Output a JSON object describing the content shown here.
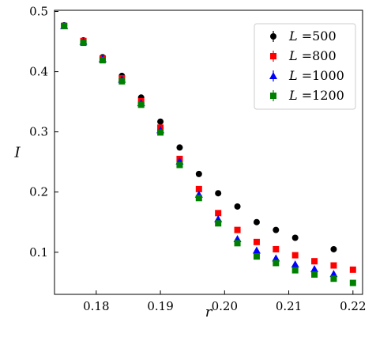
{
  "chart_data": {
    "type": "scatter",
    "xlabel": "r",
    "ylabel": "I",
    "xlim": [
      0.1735,
      0.2215
    ],
    "ylim": [
      0.03,
      0.502
    ],
    "x_ticks": [
      0.18,
      0.19,
      0.2,
      0.21,
      0.22
    ],
    "x_tick_labels": [
      "0.18",
      "0.19",
      "0.20",
      "0.21",
      "0.22"
    ],
    "y_ticks": [
      0.1,
      0.2,
      0.3,
      0.4,
      0.5
    ],
    "y_tick_labels": [
      "0.1",
      "0.2",
      "0.3",
      "0.4",
      "0.5"
    ],
    "grid": false,
    "legend_position": "top-right",
    "series": [
      {
        "name": "L =500",
        "legend_var": "L",
        "legend_value": " =500",
        "color": "#000000",
        "marker": "circle",
        "points": [
          {
            "x": 0.175,
            "y": 0.477
          },
          {
            "x": 0.178,
            "y": 0.452
          },
          {
            "x": 0.181,
            "y": 0.424
          },
          {
            "x": 0.184,
            "y": 0.393
          },
          {
            "x": 0.187,
            "y": 0.357
          },
          {
            "x": 0.19,
            "y": 0.317
          },
          {
            "x": 0.193,
            "y": 0.274
          },
          {
            "x": 0.196,
            "y": 0.23
          },
          {
            "x": 0.199,
            "y": 0.198
          },
          {
            "x": 0.202,
            "y": 0.176
          },
          {
            "x": 0.205,
            "y": 0.15
          },
          {
            "x": 0.208,
            "y": 0.137
          },
          {
            "x": 0.211,
            "y": 0.124
          },
          {
            "x": 0.217,
            "y": 0.105
          }
        ]
      },
      {
        "name": "L =800",
        "legend_var": "L",
        "legend_value": " =800",
        "color": "#ff0000",
        "marker": "square",
        "points": [
          {
            "x": 0.175,
            "y": 0.476
          },
          {
            "x": 0.178,
            "y": 0.451
          },
          {
            "x": 0.181,
            "y": 0.422
          },
          {
            "x": 0.184,
            "y": 0.389
          },
          {
            "x": 0.187,
            "y": 0.351
          },
          {
            "x": 0.19,
            "y": 0.307
          },
          {
            "x": 0.193,
            "y": 0.255
          },
          {
            "x": 0.196,
            "y": 0.205
          },
          {
            "x": 0.199,
            "y": 0.165
          },
          {
            "x": 0.202,
            "y": 0.137
          },
          {
            "x": 0.205,
            "y": 0.117
          },
          {
            "x": 0.208,
            "y": 0.105
          },
          {
            "x": 0.211,
            "y": 0.095
          },
          {
            "x": 0.214,
            "y": 0.085
          },
          {
            "x": 0.217,
            "y": 0.078
          },
          {
            "x": 0.22,
            "y": 0.071
          }
        ]
      },
      {
        "name": "L =1000",
        "legend_var": "L",
        "legend_value": " =1000",
        "color": "#0000ff",
        "marker": "triangle",
        "points": [
          {
            "x": 0.175,
            "y": 0.476
          },
          {
            "x": 0.178,
            "y": 0.45
          },
          {
            "x": 0.181,
            "y": 0.421
          },
          {
            "x": 0.184,
            "y": 0.387
          },
          {
            "x": 0.187,
            "y": 0.348
          },
          {
            "x": 0.19,
            "y": 0.303
          },
          {
            "x": 0.193,
            "y": 0.251
          },
          {
            "x": 0.196,
            "y": 0.196
          },
          {
            "x": 0.199,
            "y": 0.155
          },
          {
            "x": 0.202,
            "y": 0.122
          },
          {
            "x": 0.205,
            "y": 0.103
          },
          {
            "x": 0.208,
            "y": 0.09
          },
          {
            "x": 0.211,
            "y": 0.08
          },
          {
            "x": 0.214,
            "y": 0.072
          },
          {
            "x": 0.217,
            "y": 0.064
          }
        ]
      },
      {
        "name": "L =1200",
        "legend_var": "L",
        "legend_value": " =1200",
        "color": "#008000",
        "marker": "square",
        "points": [
          {
            "x": 0.175,
            "y": 0.476
          },
          {
            "x": 0.178,
            "y": 0.448
          },
          {
            "x": 0.181,
            "y": 0.419
          },
          {
            "x": 0.184,
            "y": 0.384
          },
          {
            "x": 0.187,
            "y": 0.345
          },
          {
            "x": 0.19,
            "y": 0.299
          },
          {
            "x": 0.193,
            "y": 0.245
          },
          {
            "x": 0.196,
            "y": 0.19
          },
          {
            "x": 0.199,
            "y": 0.148
          },
          {
            "x": 0.202,
            "y": 0.115
          },
          {
            "x": 0.205,
            "y": 0.093
          },
          {
            "x": 0.208,
            "y": 0.082
          },
          {
            "x": 0.211,
            "y": 0.07
          },
          {
            "x": 0.214,
            "y": 0.063
          },
          {
            "x": 0.217,
            "y": 0.056
          },
          {
            "x": 0.22,
            "y": 0.049
          }
        ]
      }
    ]
  }
}
